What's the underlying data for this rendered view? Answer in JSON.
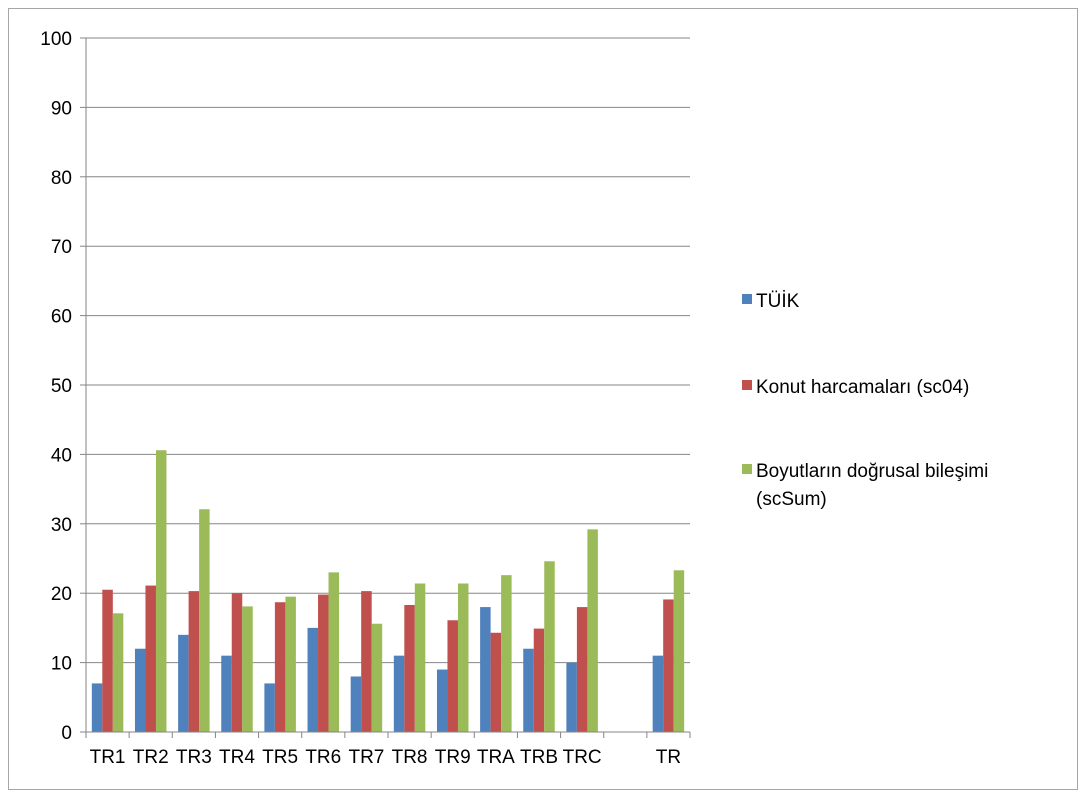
{
  "chart_data": {
    "type": "bar",
    "categories": [
      "TR1",
      "TR2",
      "TR3",
      "TR4",
      "TR5",
      "TR6",
      "TR7",
      "TR8",
      "TR9",
      "TRA",
      "TRB",
      "TRC",
      "",
      "TR"
    ],
    "series": [
      {
        "name": "TÜİK",
        "color": "#4f81bd",
        "values": [
          7,
          12,
          14,
          11,
          7,
          15,
          8,
          11,
          9,
          18,
          12,
          10,
          null,
          11
        ]
      },
      {
        "name": "Konut harcamaları (sc04)",
        "color": "#c0504d",
        "values": [
          20.5,
          21.1,
          20.3,
          20.0,
          18.7,
          19.8,
          20.3,
          18.3,
          16.1,
          14.3,
          14.9,
          18.0,
          null,
          19.1
        ]
      },
      {
        "name": "Boyutların doğrusal bileşimi (scSum)",
        "color": "#9bbb59",
        "values": [
          17.1,
          40.6,
          32.1,
          18.1,
          19.5,
          23.0,
          15.6,
          21.4,
          21.4,
          22.6,
          24.6,
          29.2,
          null,
          23.3
        ]
      }
    ],
    "yticks": [
      "0",
      "10",
      "20",
      "30",
      "40",
      "50",
      "60",
      "70",
      "80",
      "90",
      "100"
    ],
    "ylim": [
      0,
      100
    ],
    "grid": true,
    "legend_position": "right"
  }
}
